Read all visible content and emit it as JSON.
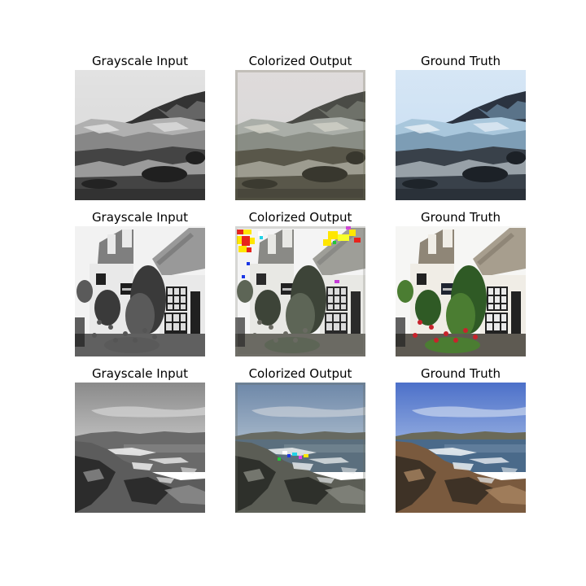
{
  "figure": {
    "rows": [
      {
        "scene": "glacier",
        "panels": [
          {
            "title": "Grayscale Input",
            "variant": "gray"
          },
          {
            "title": "Colorized Output",
            "variant": "output"
          },
          {
            "title": "Ground Truth",
            "variant": "truth"
          }
        ]
      },
      {
        "scene": "cottage",
        "panels": [
          {
            "title": "Grayscale Input",
            "variant": "gray"
          },
          {
            "title": "Colorized Output",
            "variant": "output"
          },
          {
            "title": "Ground Truth",
            "variant": "truth"
          }
        ]
      },
      {
        "scene": "coast",
        "panels": [
          {
            "title": "Grayscale Input",
            "variant": "gray"
          },
          {
            "title": "Colorized Output",
            "variant": "output"
          },
          {
            "title": "Ground Truth",
            "variant": "truth"
          }
        ]
      }
    ]
  }
}
